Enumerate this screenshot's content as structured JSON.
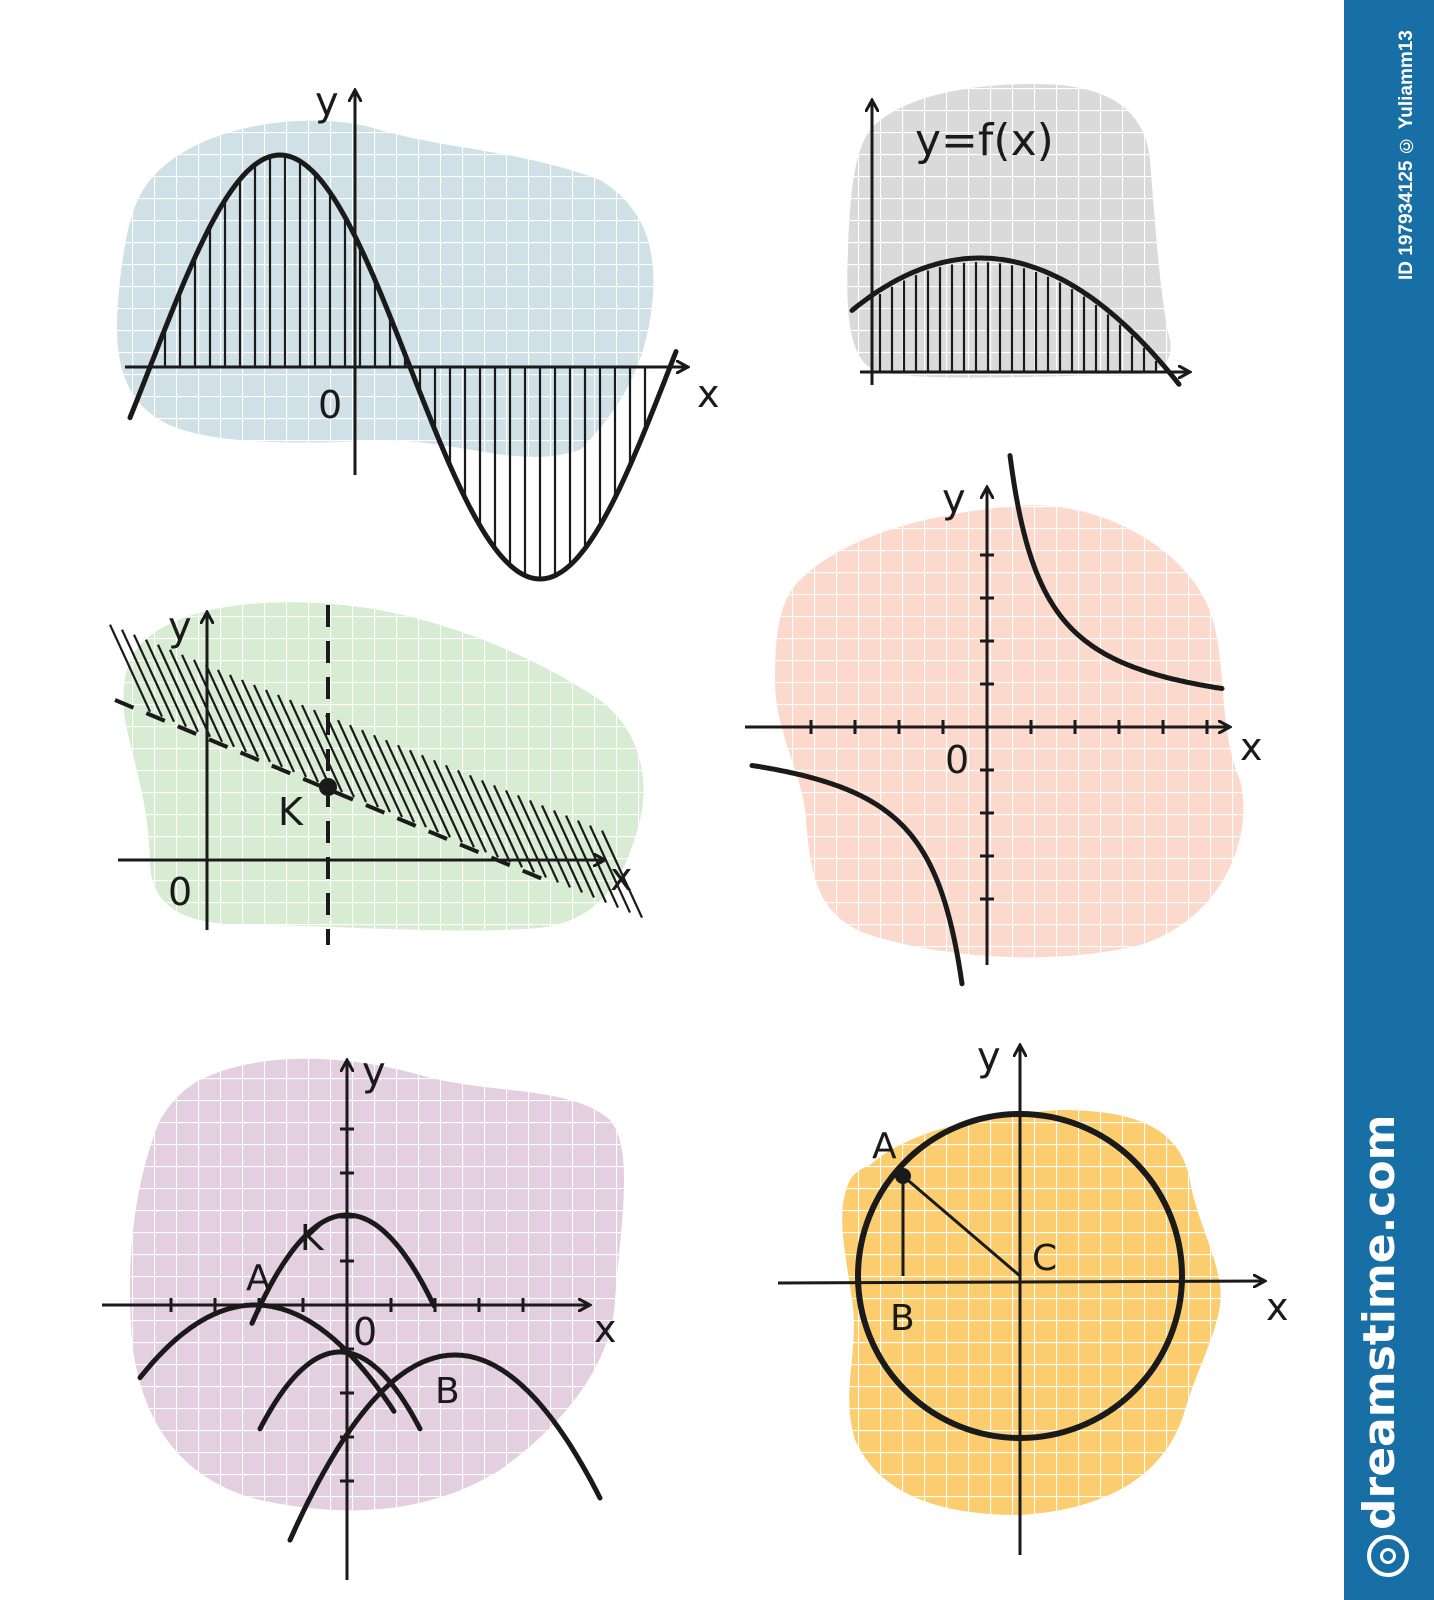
{
  "colors": {
    "panel_sine": "#cfe0e6",
    "panel_fx": "#dadada",
    "panel_inequality": "#d7ecd2",
    "panel_hyperbola": "#fbd9cc",
    "panel_parabolas": "#e3cfdf",
    "panel_circle": "#fbcd6e",
    "ink": "#1a1a1a",
    "sidebar": "#176fa6"
  },
  "panels": {
    "sine": {
      "y_label": "y",
      "x_label": "x",
      "origin_label": "0"
    },
    "fx": {
      "formula": "y=f(x)"
    },
    "inequality": {
      "y_label": "y",
      "x_label": "x",
      "origin_label": "0",
      "point_label": "K"
    },
    "hyperbola": {
      "y_label": "y",
      "x_label": "x",
      "origin_label": "0"
    },
    "parabolas": {
      "y_label": "y",
      "x_label": "x",
      "origin_label": "0",
      "point_a": "A",
      "point_k": "K",
      "point_b": "B"
    },
    "circle": {
      "y_label": "y",
      "x_label": "x",
      "point_a": "A",
      "point_b": "B",
      "point_c": "C"
    }
  },
  "watermark": {
    "id_text": "ID 197934125 © Yuliamm13",
    "brand": "dreamstime.com",
    "logo_icon": "spiral-logo-icon"
  }
}
